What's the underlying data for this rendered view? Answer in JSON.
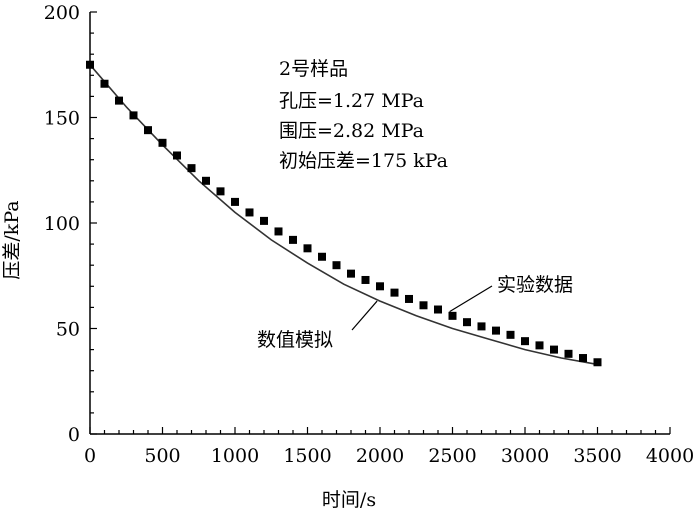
{
  "chart_data": {
    "type": "scatter",
    "xlabel": "时间/s",
    "ylabel": "压差/kPa",
    "xlim": [
      0,
      4000
    ],
    "ylim": [
      0,
      200
    ],
    "x_ticks": [
      0,
      500,
      1000,
      1500,
      2000,
      2500,
      3000,
      3500,
      4000
    ],
    "y_ticks": [
      0,
      50,
      100,
      150,
      200
    ],
    "x_tick_labels": [
      "0",
      "500",
      "1000",
      "1500",
      "2000",
      "2500",
      "3000",
      "3500",
      "4000"
    ],
    "y_tick_labels": [
      "0",
      "50",
      "100",
      "150",
      "200"
    ],
    "grid": false,
    "annotation_lines": [
      "2号样品",
      "孔压=1.27 MPa",
      "围压=2.82 MPa",
      "初始压差=175 kPa"
    ],
    "series": [
      {
        "name": "实验数据",
        "style": "markers",
        "marker": "square",
        "color": "#000000",
        "x": [
          0,
          100,
          200,
          300,
          400,
          500,
          600,
          700,
          800,
          900,
          1000,
          1100,
          1200,
          1300,
          1400,
          1500,
          1600,
          1700,
          1800,
          1900,
          2000,
          2100,
          2200,
          2300,
          2400,
          2500,
          2600,
          2700,
          2800,
          2900,
          3000,
          3100,
          3200,
          3300,
          3400,
          3500
        ],
        "y": [
          175,
          166,
          158,
          151,
          144,
          138,
          132,
          126,
          120,
          115,
          110,
          105,
          101,
          96,
          92,
          88,
          84,
          80,
          76,
          73,
          70,
          67,
          64,
          61,
          59,
          56,
          53,
          51,
          49,
          47,
          44,
          42,
          40,
          38,
          36,
          34
        ]
      },
      {
        "name": "数值模拟",
        "style": "line",
        "color": "#333333",
        "x": [
          0,
          250,
          500,
          750,
          1000,
          1250,
          1500,
          1750,
          2000,
          2250,
          2500,
          2750,
          3000,
          3250,
          3500
        ],
        "y": [
          175,
          155,
          137,
          120,
          105,
          92,
          81,
          71,
          63,
          56,
          50,
          45,
          40,
          36,
          33
        ]
      }
    ]
  }
}
